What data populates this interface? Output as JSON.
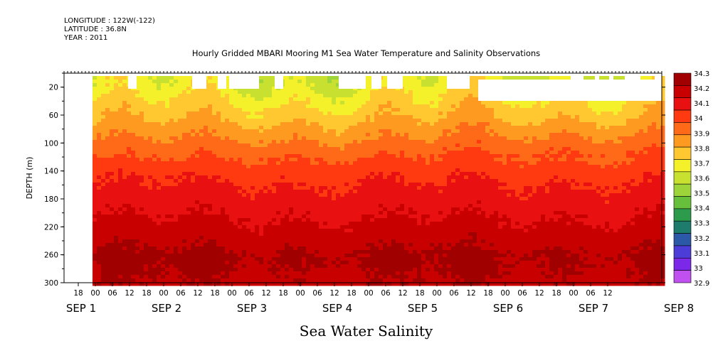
{
  "meta": {
    "longitude": "LONGITUDE : 122W(-122)",
    "latitude": "LATITUDE : 36.8N",
    "year": "YEAR : 2011"
  },
  "chart_data": {
    "type": "heatmap",
    "title": "Hourly Gridded MBARI Mooring M1 Sea Water Temperature and Salinity Observations",
    "bottom_title": "Sea Water Salinity",
    "ylabel": "DEPTH (m)",
    "ylim": [
      300,
      0
    ],
    "y_ticks": [
      20,
      60,
      100,
      140,
      180,
      220,
      260,
      300
    ],
    "x_hour_ticks": [
      "18",
      "00",
      "06",
      "12",
      "18",
      "00",
      "06",
      "12",
      "18",
      "00",
      "06",
      "12",
      "18",
      "00",
      "06",
      "12",
      "18",
      "00",
      "06",
      "12",
      "18",
      "00",
      "06",
      "12",
      "18",
      "00",
      "06",
      "12",
      "18",
      "00",
      "06",
      "12"
    ],
    "x_day_labels": [
      "SEP  1",
      "SEP  2",
      "SEP  3",
      "SEP  4",
      "SEP  5",
      "SEP  6",
      "SEP  7",
      "SEP  8"
    ],
    "colorbar": {
      "levels": [
        "34.3",
        "34.2",
        "34.1",
        "34",
        "33.9",
        "33.8",
        "33.7",
        "33.6",
        "33.5",
        "33.4",
        "33.3",
        "33.2",
        "33.1",
        "33",
        "32.9"
      ],
      "colors": [
        "#a00000",
        "#c80000",
        "#e81010",
        "#ff3a10",
        "#ff6a18",
        "#ff9a20",
        "#ffc830",
        "#f4f02a",
        "#c8e030",
        "#9cd43a",
        "#66c03c",
        "#2c9c4c",
        "#1e7c6c",
        "#2c58a8",
        "#4c3cd8",
        "#7c28e8",
        "#c050f0"
      ]
    },
    "depth_profile": [
      {
        "depth": 10,
        "salinity": 33.55
      },
      {
        "depth": 30,
        "salinity": 33.62
      },
      {
        "depth": 60,
        "salinity": 33.72
      },
      {
        "depth": 100,
        "salinity": 33.88
      },
      {
        "depth": 140,
        "salinity": 34.02
      },
      {
        "depth": 180,
        "salinity": 34.1
      },
      {
        "depth": 220,
        "salinity": 34.18
      },
      {
        "depth": 260,
        "salinity": 34.27
      },
      {
        "depth": 300,
        "salinity": 34.23
      }
    ]
  }
}
